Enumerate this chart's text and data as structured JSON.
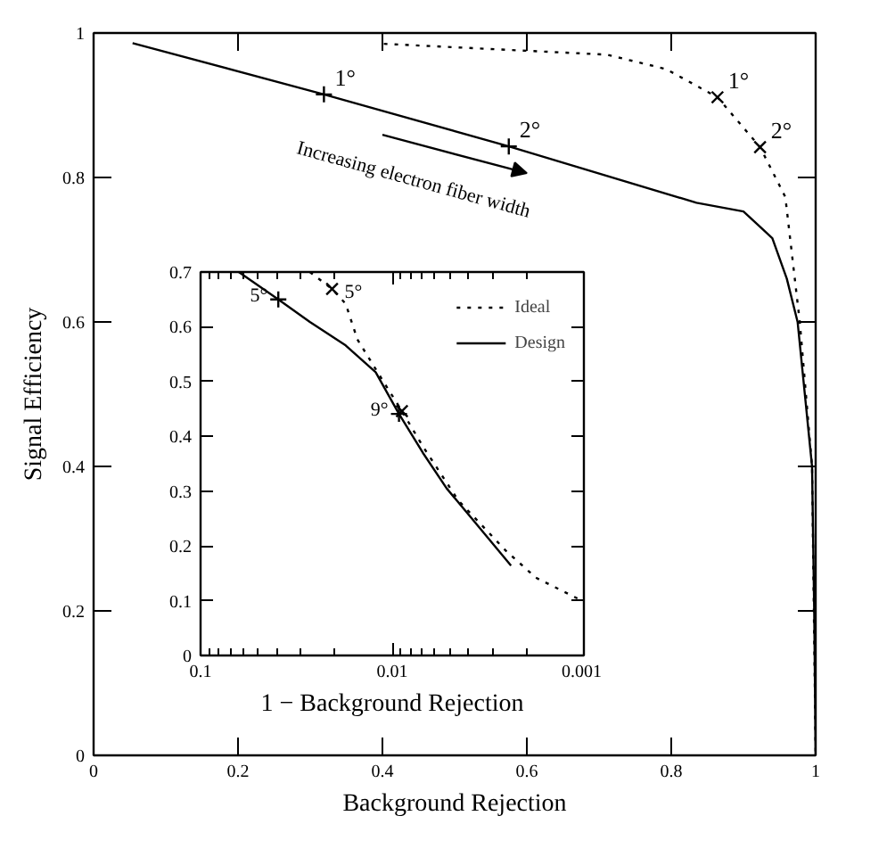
{
  "chart_data": [
    {
      "type": "line",
      "xlabel": "Background Rejection",
      "ylabel": "Signal Efficiency",
      "xlim": [
        0,
        1
      ],
      "ylim": [
        0,
        1
      ],
      "xticks": [
        0,
        0.2,
        0.4,
        0.6,
        0.8,
        1
      ],
      "yticks": [
        0,
        0.2,
        0.4,
        0.6,
        0.8,
        1
      ],
      "series": [
        {
          "color": "#000000",
          "line_style": "solid",
          "x": [
            0.054,
            0.319,
            0.575,
            0.835,
            0.9,
            0.94,
            0.96,
            0.975,
            0.995,
            0.998,
            1
          ],
          "values": [
            0.986,
            0.915,
            0.843,
            0.765,
            0.753,
            0.716,
            0.66,
            0.6,
            0.4,
            0.2,
            0
          ]
        },
        {
          "color": "#000000",
          "line_style": "dotted",
          "x": [
            0.402,
            0.711,
            0.793,
            0.864,
            0.923,
            0.958,
            0.978,
            0.995,
            1
          ],
          "values": [
            0.985,
            0.97,
            0.95,
            0.911,
            0.842,
            0.773,
            0.6,
            0.4,
            0
          ]
        },
        {
          "type": "scatter",
          "color": "#000000",
          "marker": "cross",
          "x": [
            0.319,
            0.575
          ],
          "values": [
            0.915,
            0.843
          ]
        },
        {
          "type": "scatter",
          "color": "#000000",
          "marker": "x",
          "x": [
            0.864,
            0.923
          ],
          "values": [
            0.911,
            0.842
          ]
        }
      ],
      "annotations": [
        {
          "text": "1°",
          "x": 0.319,
          "y": 0.915
        },
        {
          "text": "2°",
          "x": 0.575,
          "y": 0.843
        },
        {
          "text": "1°",
          "x": 0.864,
          "y": 0.911
        },
        {
          "text": "2°",
          "x": 0.923,
          "y": 0.842
        },
        "Increasing electron fiber width"
      ]
    },
    {
      "type": "line",
      "log": "x",
      "xlabel": "1 − Background Rejection",
      "xlim": [
        0.1,
        0.001
      ],
      "ylim": [
        0,
        0.7
      ],
      "xticks": [
        0.1,
        0.01,
        0.001
      ],
      "yticks": [
        0,
        0.1,
        0.2,
        0.3,
        0.4,
        0.5,
        0.6,
        0.7
      ],
      "legend": "top right",
      "series": [
        {
          "name": "Ideal",
          "color": "#000000",
          "line_style": "dotted",
          "x": [
            0.0269,
            0.0206,
            0.0175,
            0.0152,
            0.0114,
            0.0089,
            0.0069,
            0.00452,
            0.00255,
            0.00178,
            0.00101
          ],
          "values": [
            0.7,
            0.669,
            0.642,
            0.577,
            0.506,
            0.446,
            0.381,
            0.283,
            0.191,
            0.142,
            0.099
          ]
        },
        {
          "name": "Design",
          "color": "#000000",
          "line_style": "solid",
          "x": [
            0.0632,
            0.0393,
            0.0269,
            0.0175,
            0.0122,
            0.00922,
            0.00692,
            0.0052,
            0.00364,
            0.0024
          ],
          "values": [
            0.7,
            0.65,
            0.609,
            0.566,
            0.517,
            0.441,
            0.37,
            0.305,
            0.24,
            0.164
          ]
        },
        {
          "type": "scatter",
          "color": "#000000",
          "marker": "cross",
          "x": [
            0.0393,
            0.00922
          ],
          "values": [
            0.65,
            0.441
          ]
        },
        {
          "type": "scatter",
          "color": "#000000",
          "marker": "x",
          "x": [
            0.0206,
            0.0089
          ],
          "values": [
            0.669,
            0.446
          ]
        }
      ],
      "annotations": [
        {
          "text": "5°",
          "x": 0.0393,
          "y": 0.65
        },
        {
          "text": "5°",
          "x": 0.0206,
          "y": 0.669
        },
        {
          "text": "9°",
          "x": 0.00922,
          "y": 0.441
        }
      ]
    }
  ]
}
